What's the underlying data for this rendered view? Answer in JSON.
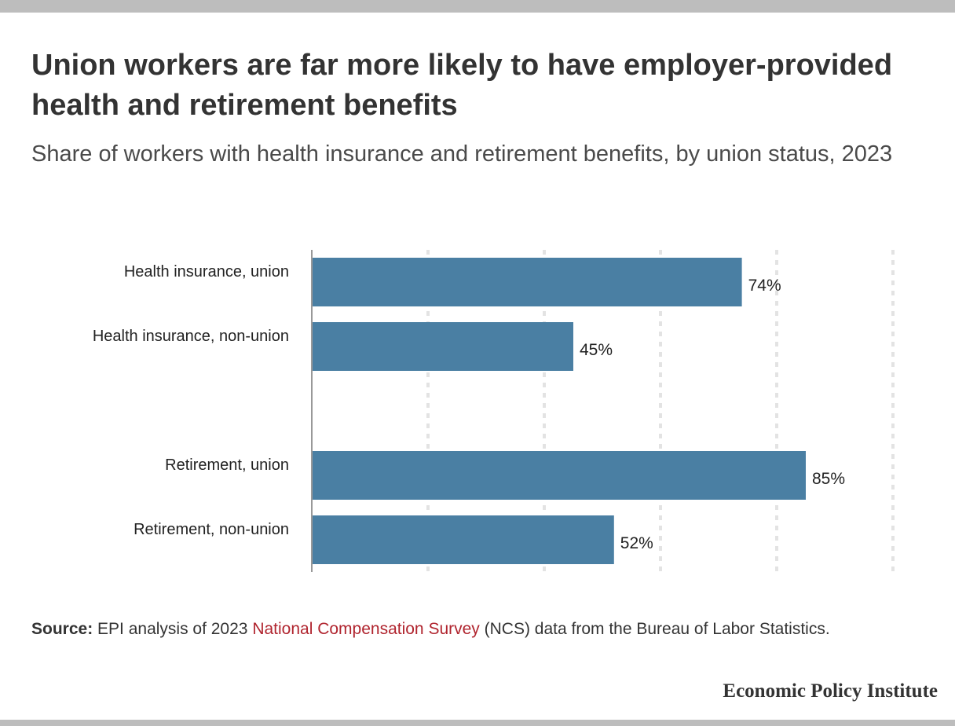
{
  "title": "Union workers are far more likely to have employer-provided health and retirement benefits",
  "subtitle": "Share of workers with health insurance and retirement benefits, by union status, 2023",
  "source": {
    "label": "Source:",
    "text_before": " EPI analysis of 2023 ",
    "link_text": "National Compensation Survey",
    "text_after": " (NCS) data from the Bureau of Labor Statistics."
  },
  "brand": "Economic Policy Institute",
  "colors": {
    "bar": "#4a7fa3",
    "grid": "#e3e3e3",
    "axis": "#999999",
    "link": "#b0242e"
  },
  "chart_data": {
    "type": "bar",
    "orientation": "horizontal",
    "categories": [
      "Health insurance, union",
      "Health insurance, non-union",
      "Retirement, union",
      "Retirement, non-union"
    ],
    "values": [
      74,
      45,
      85,
      52
    ],
    "value_labels": [
      "74%",
      "45%",
      "85%",
      "52%"
    ],
    "groups": [
      [
        0,
        1
      ],
      [
        2,
        3
      ]
    ],
    "xlim": [
      0,
      100
    ],
    "grid": true,
    "legend": "none"
  }
}
